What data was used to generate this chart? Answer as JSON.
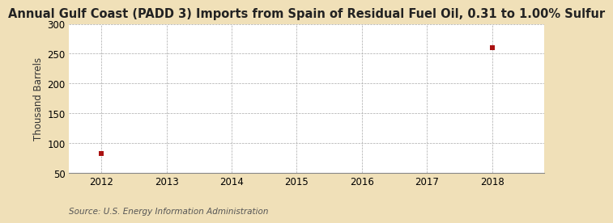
{
  "title": "Annual Gulf Coast (PADD 3) Imports from Spain of Residual Fuel Oil, 0.31 to 1.00% Sulfur",
  "ylabel": "Thousand Barrels",
  "source": "Source: U.S. Energy Information Administration",
  "outer_bg_color": "#f0e0b8",
  "plot_bg_color": "#ffffff",
  "x_data": [
    2012,
    2018
  ],
  "y_data": [
    82,
    260
  ],
  "xlim": [
    2011.5,
    2018.8
  ],
  "ylim": [
    50,
    300
  ],
  "yticks": [
    50,
    100,
    150,
    200,
    250,
    300
  ],
  "xticks": [
    2012,
    2013,
    2014,
    2015,
    2016,
    2017,
    2018
  ],
  "marker_color": "#aa1111",
  "marker_size": 16,
  "grid_color": "#aaaaaa",
  "title_fontsize": 10.5,
  "label_fontsize": 8.5,
  "tick_fontsize": 8.5,
  "source_fontsize": 7.5
}
